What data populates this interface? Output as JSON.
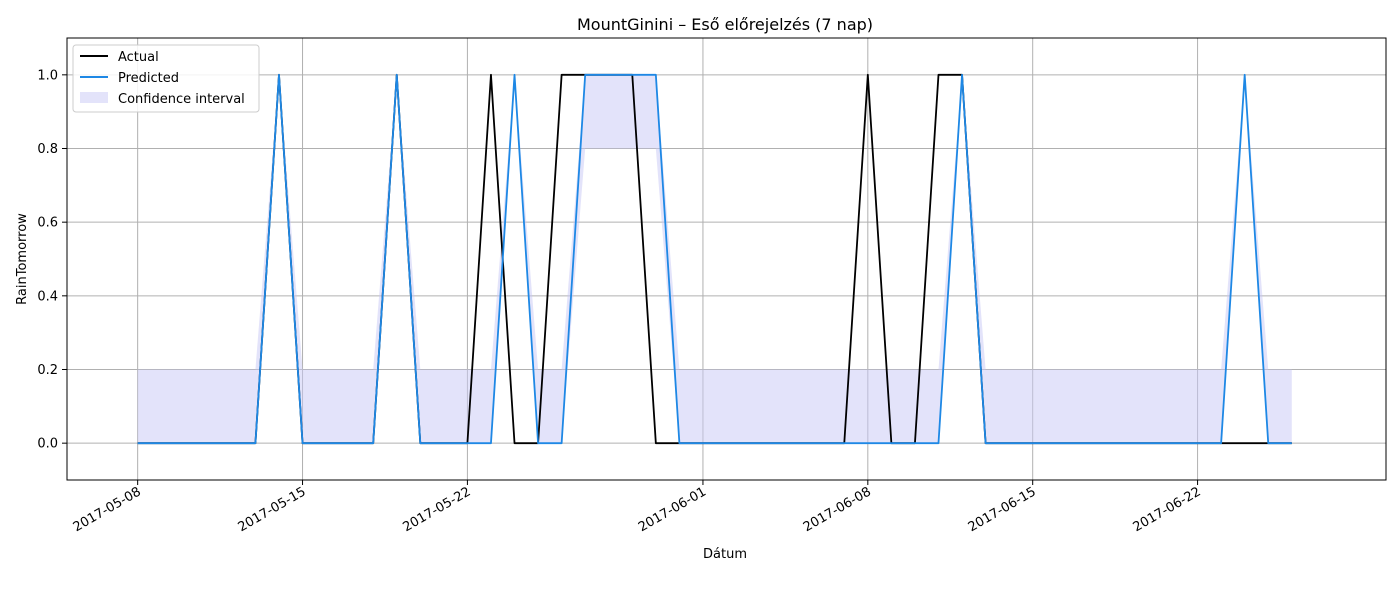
{
  "chart_data": {
    "type": "line",
    "title": "MountGinini – Eső előrejelzés (7 nap)",
    "xlabel": "Dátum",
    "ylabel": "RainTomorrow",
    "x_start": "2017-05-08",
    "x_end": "2017-06-26",
    "xlim": [
      "2017-05-05",
      "2017-06-30"
    ],
    "ylim": [
      -0.1,
      1.1
    ],
    "xticks": [
      "2017-05-08",
      "2017-05-15",
      "2017-05-22",
      "2017-06-01",
      "2017-06-08",
      "2017-06-15",
      "2017-06-22"
    ],
    "yticks": [
      "0.0",
      "0.2",
      "0.4",
      "0.6",
      "0.8",
      "1.0"
    ],
    "grid": true,
    "legend_position": "top-left",
    "colors": {
      "actual": "#000000",
      "predicted": "#1e88e5",
      "confidence": "#c8c8f5"
    },
    "series": [
      {
        "name": "Actual",
        "values": [
          0,
          0,
          0,
          0,
          0,
          0,
          1,
          0,
          0,
          0,
          0,
          1,
          0,
          0,
          0,
          1,
          0,
          0,
          1,
          1,
          1,
          1,
          0,
          0,
          0,
          0,
          0,
          0,
          0,
          0,
          0,
          1,
          0,
          0,
          1,
          1,
          0,
          0,
          0,
          0,
          0,
          0,
          0,
          0,
          0,
          0,
          0,
          0,
          0,
          0
        ]
      },
      {
        "name": "Predicted",
        "values": [
          0,
          0,
          0,
          0,
          0,
          0,
          1,
          0,
          0,
          0,
          0,
          1,
          0,
          0,
          0,
          0,
          1,
          0,
          0,
          1,
          1,
          1,
          1,
          0,
          0,
          0,
          0,
          0,
          0,
          0,
          0,
          0,
          0,
          0,
          0,
          1,
          0,
          0,
          0,
          0,
          0,
          0,
          0,
          0,
          0,
          0,
          0,
          1,
          0,
          0
        ]
      }
    ],
    "confidence_interval": {
      "name": "Confidence interval",
      "lower": [
        0,
        0,
        0,
        0,
        0,
        0,
        1,
        0,
        0,
        0,
        0,
        1,
        0,
        0,
        0,
        0,
        1,
        0,
        0,
        0.8,
        0.8,
        0.8,
        0.8,
        0,
        0,
        0,
        0,
        0,
        0,
        0,
        0,
        0,
        0,
        0,
        0,
        1,
        0,
        0,
        0,
        0,
        0,
        0,
        0,
        0,
        0,
        0,
        0,
        1,
        0,
        0
      ],
      "upper": [
        0.2,
        0.2,
        0.2,
        0.2,
        0.2,
        0.2,
        1,
        0.2,
        0.2,
        0.2,
        0.2,
        1,
        0.2,
        0.2,
        0.2,
        0.2,
        1,
        0.2,
        0.2,
        1,
        1,
        1,
        1,
        0.2,
        0.2,
        0.2,
        0.2,
        0.2,
        0.2,
        0.2,
        0.2,
        0.2,
        0.2,
        0.2,
        0.2,
        1,
        0.2,
        0.2,
        0.2,
        0.2,
        0.2,
        0.2,
        0.2,
        0.2,
        0.2,
        0.2,
        0.2,
        1,
        0.2,
        0.2
      ]
    }
  }
}
